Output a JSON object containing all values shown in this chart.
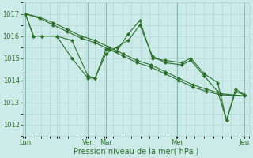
{
  "bg_color": "#cceae8",
  "grid_color": "#aad4d0",
  "line_color": "#2d6e2d",
  "xlabel": "Pression niveau de la mer( hPa )",
  "ylim": [
    1011.5,
    1017.5
  ],
  "yticks": [
    1012,
    1013,
    1014,
    1015,
    1016,
    1017
  ],
  "xtick_labels": [
    "Lun",
    "",
    "Ven",
    "Mar",
    "",
    "Mer",
    "",
    "Jeu"
  ],
  "xtick_positions": [
    0,
    3.5,
    7,
    9,
    13,
    17,
    21,
    24.5
  ],
  "xlim": [
    -0.3,
    25
  ],
  "lines": [
    {
      "x": [
        0,
        1.56,
        3.12,
        4.68,
        6.24,
        7.8,
        9.36,
        10.92,
        12.48,
        14.04,
        15.6,
        17.16,
        18.72,
        20.28,
        21.84,
        24.5
      ],
      "y": [
        1017.0,
        1016.8,
        1016.5,
        1016.2,
        1015.9,
        1015.7,
        1015.4,
        1015.1,
        1014.8,
        1014.6,
        1014.3,
        1014.0,
        1013.7,
        1013.5,
        1013.35,
        1013.3
      ]
    },
    {
      "x": [
        0,
        1.56,
        3.12,
        4.68,
        6.24,
        7.8,
        9.36,
        10.92,
        12.48,
        14.04,
        15.6,
        17.16,
        18.72,
        20.28,
        21.84,
        24.5
      ],
      "y": [
        1017.0,
        1016.85,
        1016.6,
        1016.3,
        1016.0,
        1015.8,
        1015.5,
        1015.2,
        1014.9,
        1014.7,
        1014.4,
        1014.1,
        1013.8,
        1013.6,
        1013.4,
        1013.3
      ]
    },
    {
      "x": [
        0,
        0.9,
        1.8,
        3.5,
        5.2,
        7.0,
        7.8,
        9.0,
        10.2,
        11.5,
        12.8,
        14.2,
        15.6,
        17.5,
        18.5,
        20.0,
        21.5,
        22.5,
        23.5,
        24.5
      ],
      "y": [
        1017.0,
        1016.0,
        1016.0,
        1016.0,
        1015.0,
        1014.1,
        1014.1,
        1015.4,
        1015.3,
        1016.1,
        1016.7,
        1015.0,
        1014.9,
        1014.8,
        1015.0,
        1014.3,
        1013.9,
        1012.2,
        1013.6,
        1013.35
      ]
    },
    {
      "x": [
        0,
        0.9,
        1.8,
        3.5,
        5.2,
        7.0,
        7.8,
        9.0,
        10.2,
        11.5,
        12.8,
        14.2,
        15.6,
        17.5,
        18.5,
        20.0,
        21.5,
        22.5,
        23.5,
        24.5
      ],
      "y": [
        1017.0,
        1016.0,
        1016.0,
        1016.0,
        1015.8,
        1014.2,
        1014.1,
        1015.2,
        1015.5,
        1015.8,
        1016.5,
        1015.1,
        1014.8,
        1014.7,
        1014.9,
        1014.2,
        1013.5,
        1012.2,
        1013.5,
        1013.35
      ]
    }
  ],
  "vline_positions": [
    0,
    7,
    9,
    17,
    24.5
  ],
  "figsize": [
    3.2,
    2.0
  ],
  "dpi": 100,
  "xlabel_fontsize": 7,
  "tick_fontsize": 6
}
